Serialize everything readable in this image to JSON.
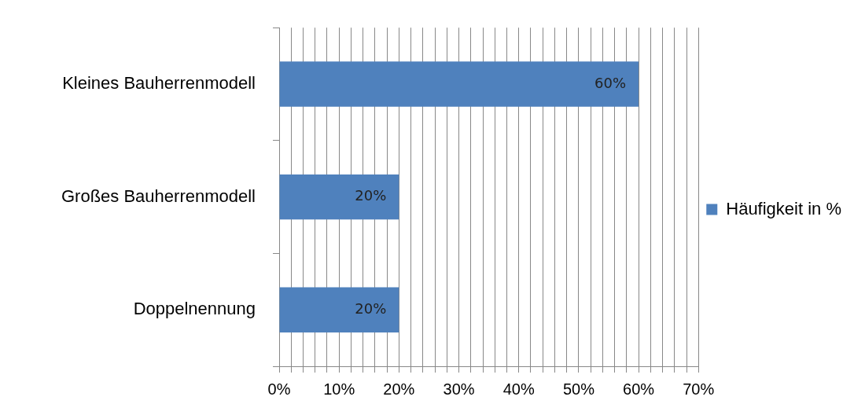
{
  "chart_data": {
    "type": "bar",
    "orientation": "horizontal",
    "categories": [
      "Kleines Bauherrenmodell",
      "Großes Bauherrenmodell",
      "Doppelnennung"
    ],
    "series": [
      {
        "name": "Häufigkeit in %",
        "color": "#4f81bd",
        "values": [
          60,
          20,
          20
        ],
        "value_labels": [
          "60%",
          "20%",
          "20%"
        ]
      }
    ],
    "xlim": [
      0,
      70
    ],
    "xticks": [
      {
        "value": 0,
        "label": "0%"
      },
      {
        "value": 2,
        "label": null
      },
      {
        "value": 4,
        "label": null
      },
      {
        "value": 6,
        "label": null
      },
      {
        "value": 8,
        "label": null
      },
      {
        "value": 10,
        "label": "10%"
      },
      {
        "value": 12,
        "label": null
      },
      {
        "value": 14,
        "label": null
      },
      {
        "value": 16,
        "label": null
      },
      {
        "value": 18,
        "label": null
      },
      {
        "value": 20,
        "label": "20%"
      },
      {
        "value": 22,
        "label": null
      },
      {
        "value": 24,
        "label": null
      },
      {
        "value": 26,
        "label": null
      },
      {
        "value": 28,
        "label": null
      },
      {
        "value": 30,
        "label": "30%"
      },
      {
        "value": 32,
        "label": null
      },
      {
        "value": 34,
        "label": null
      },
      {
        "value": 36,
        "label": null
      },
      {
        "value": 38,
        "label": null
      },
      {
        "value": 40,
        "label": "40%"
      },
      {
        "value": 42,
        "label": null
      },
      {
        "value": 44,
        "label": null
      },
      {
        "value": 46,
        "label": null
      },
      {
        "value": 48,
        "label": null
      },
      {
        "value": 50,
        "label": "50%"
      },
      {
        "value": 52,
        "label": null
      },
      {
        "value": 54,
        "label": null
      },
      {
        "value": 56,
        "label": null
      },
      {
        "value": 58,
        "label": null
      },
      {
        "value": 60,
        "label": "60%"
      },
      {
        "value": 62,
        "label": null
      },
      {
        "value": 64,
        "label": null
      },
      {
        "value": 66,
        "label": null
      },
      {
        "value": 68,
        "label": null
      },
      {
        "value": 70,
        "label": "70%"
      }
    ],
    "grid": "x",
    "legend": "right"
  }
}
